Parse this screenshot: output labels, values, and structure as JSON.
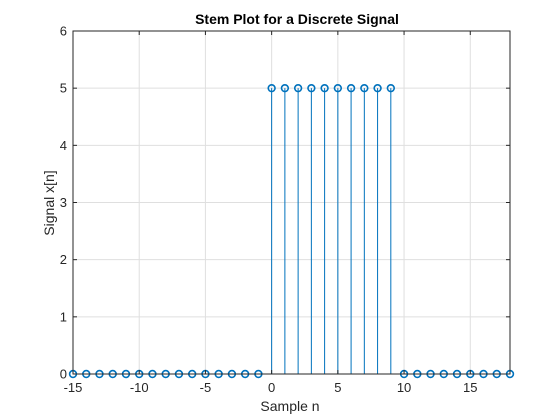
{
  "chart_data": {
    "type": "stem",
    "title": "Stem Plot for a Discrete Signal",
    "xlabel": "Sample n",
    "ylabel": "Signal x[n]",
    "xlim": [
      -15,
      18
    ],
    "ylim": [
      0,
      6
    ],
    "xticks": [
      -15,
      -10,
      -5,
      0,
      5,
      10,
      15
    ],
    "yticks": [
      0,
      1,
      2,
      3,
      4,
      5,
      6
    ],
    "grid": true,
    "series": [
      {
        "x": [
          -15,
          -14,
          -13,
          -12,
          -11,
          -10,
          -9,
          -8,
          -7,
          -6,
          -5,
          -4,
          -3,
          -2,
          -1,
          0,
          1,
          2,
          3,
          4,
          5,
          6,
          7,
          8,
          9,
          10,
          11,
          12,
          13,
          14,
          15,
          16,
          17,
          18
        ],
        "values": [
          0,
          0,
          0,
          0,
          0,
          0,
          0,
          0,
          0,
          0,
          0,
          0,
          0,
          0,
          0,
          5,
          5,
          5,
          5,
          5,
          5,
          5,
          5,
          5,
          5,
          0,
          0,
          0,
          0,
          0,
          0,
          0,
          0,
          0
        ],
        "color": "#0072BD",
        "marker": "circle"
      }
    ]
  },
  "colors": {
    "series": "#0072BD",
    "axis": "#262626",
    "grid": "#dfdfdf"
  }
}
